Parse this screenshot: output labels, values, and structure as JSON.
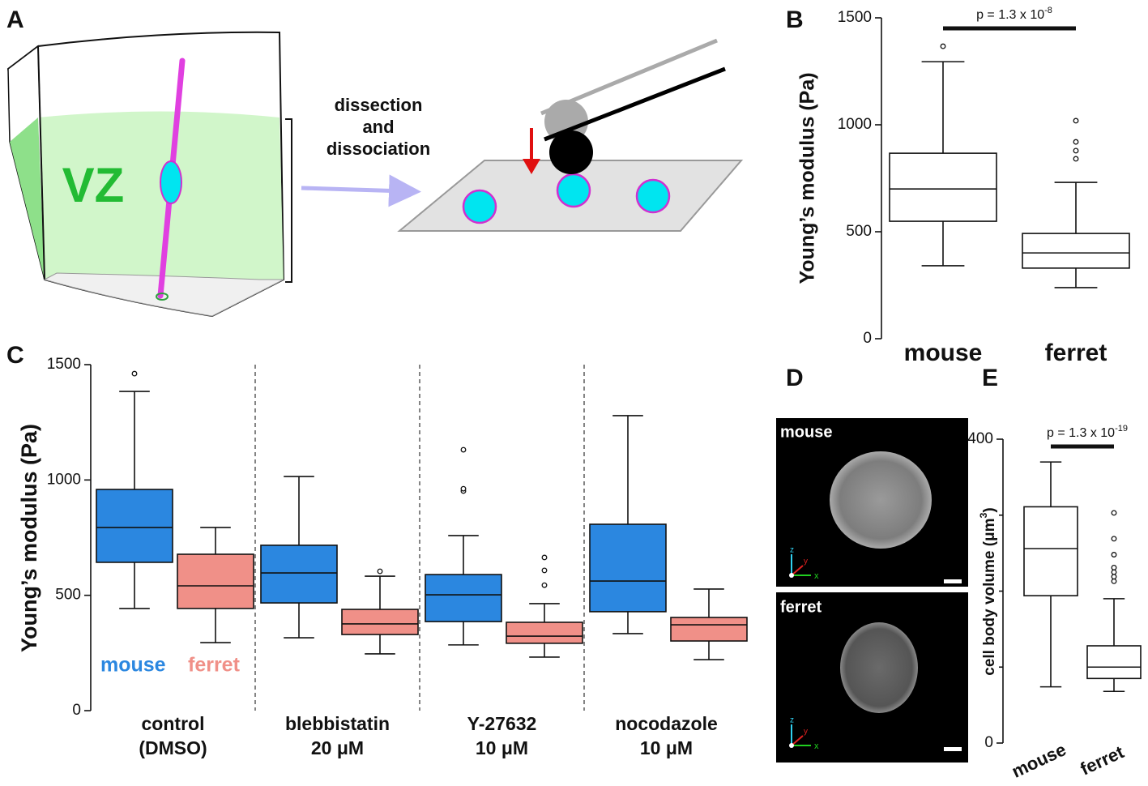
{
  "panel_labels": [
    "A",
    "B",
    "C",
    "D",
    "E"
  ],
  "diagram": {
    "region": "VZ",
    "step": [
      "dissection",
      "and",
      "dissociation"
    ]
  },
  "images": [
    {
      "label": "mouse"
    },
    {
      "label": "ferret"
    }
  ],
  "image_axes": [
    "z",
    "y",
    "x"
  ],
  "chart_data": [
    {
      "type": "box",
      "ylabel": "Young’s modulus (Pa)",
      "ylim": [
        0,
        1500
      ],
      "yticks": [
        0,
        500,
        1000,
        1500
      ],
      "categories": [
        "mouse",
        "ferret"
      ],
      "annotation": {
        "text": "p = 1.3 x 10",
        "exponent": "-8"
      },
      "series": [
        {
          "color": "#ffffff",
          "boxes": [
            {
              "min": 341,
              "q1": 549,
              "median": 700,
              "q3": 867,
              "max": 1295,
              "outliers": [
                1367
              ]
            },
            {
              "min": 239,
              "q1": 330,
              "median": 401,
              "q3": 492,
              "max": 731,
              "outliers": [
                841,
                879,
                920,
                1019
              ]
            }
          ]
        }
      ]
    },
    {
      "type": "box",
      "ylabel": "Young’s modulus  (Pa)",
      "ylim": [
        0,
        1500
      ],
      "yticks": [
        0,
        500,
        1000,
        1500
      ],
      "categories": [
        [
          "control",
          "(DMSO)"
        ],
        [
          "blebbistatin",
          "20 μM"
        ],
        [
          "Y-27632",
          "10 μM"
        ],
        [
          "nocodazole",
          "10 μM"
        ]
      ],
      "series": [
        {
          "name": "mouse",
          "color": "#2b87e0",
          "boxes": [
            {
              "min": 443,
              "q1": 643,
              "median": 794,
              "q3": 959,
              "max": 1384,
              "outliers": [
                1461
              ]
            },
            {
              "min": 316,
              "q1": 467,
              "median": 597,
              "q3": 717,
              "max": 1015,
              "outliers": []
            },
            {
              "min": 285,
              "q1": 386,
              "median": 502,
              "q3": 590,
              "max": 759,
              "outliers": [
                952,
                962,
                1131
              ]
            },
            {
              "min": 334,
              "q1": 429,
              "median": 562,
              "q3": 808,
              "max": 1279,
              "outliers": []
            }
          ]
        },
        {
          "name": "ferret",
          "color": "#f09088",
          "boxes": [
            {
              "min": 295,
              "q1": 443,
              "median": 541,
              "q3": 678,
              "max": 794,
              "outliers": []
            },
            {
              "min": 246,
              "q1": 330,
              "median": 376,
              "q3": 439,
              "max": 583,
              "outliers": [
                604
              ]
            },
            {
              "min": 232,
              "q1": 292,
              "median": 323,
              "q3": 383,
              "max": 464,
              "outliers": [
                544,
                608,
                664
              ]
            },
            {
              "min": 221,
              "q1": 302,
              "median": 372,
              "q3": 404,
              "max": 527,
              "outliers": []
            }
          ]
        }
      ]
    },
    {
      "type": "box",
      "ylabel": {
        "text": "cell body volume (μm",
        "superscript": "3",
        "after": ")"
      },
      "ylim": [
        0,
        400
      ],
      "yticks": [
        0,
        400
      ],
      "minor_yticks": [
        100,
        200,
        300
      ],
      "categories": [
        "mouse",
        "ferret"
      ],
      "annotation": {
        "text": "p = 1.3 x 10",
        "exponent": "-19"
      },
      "series": [
        {
          "color": "#ffffff",
          "boxes": [
            {
              "min": 74,
              "q1": 194,
              "median": 256,
              "q3": 311,
              "max": 370,
              "outliers": []
            },
            {
              "min": 68,
              "q1": 85,
              "median": 100,
              "q3": 128,
              "max": 190,
              "outliers": [
                213,
                219,
                225,
                231,
                248,
                269,
                303
              ]
            }
          ]
        }
      ]
    }
  ]
}
